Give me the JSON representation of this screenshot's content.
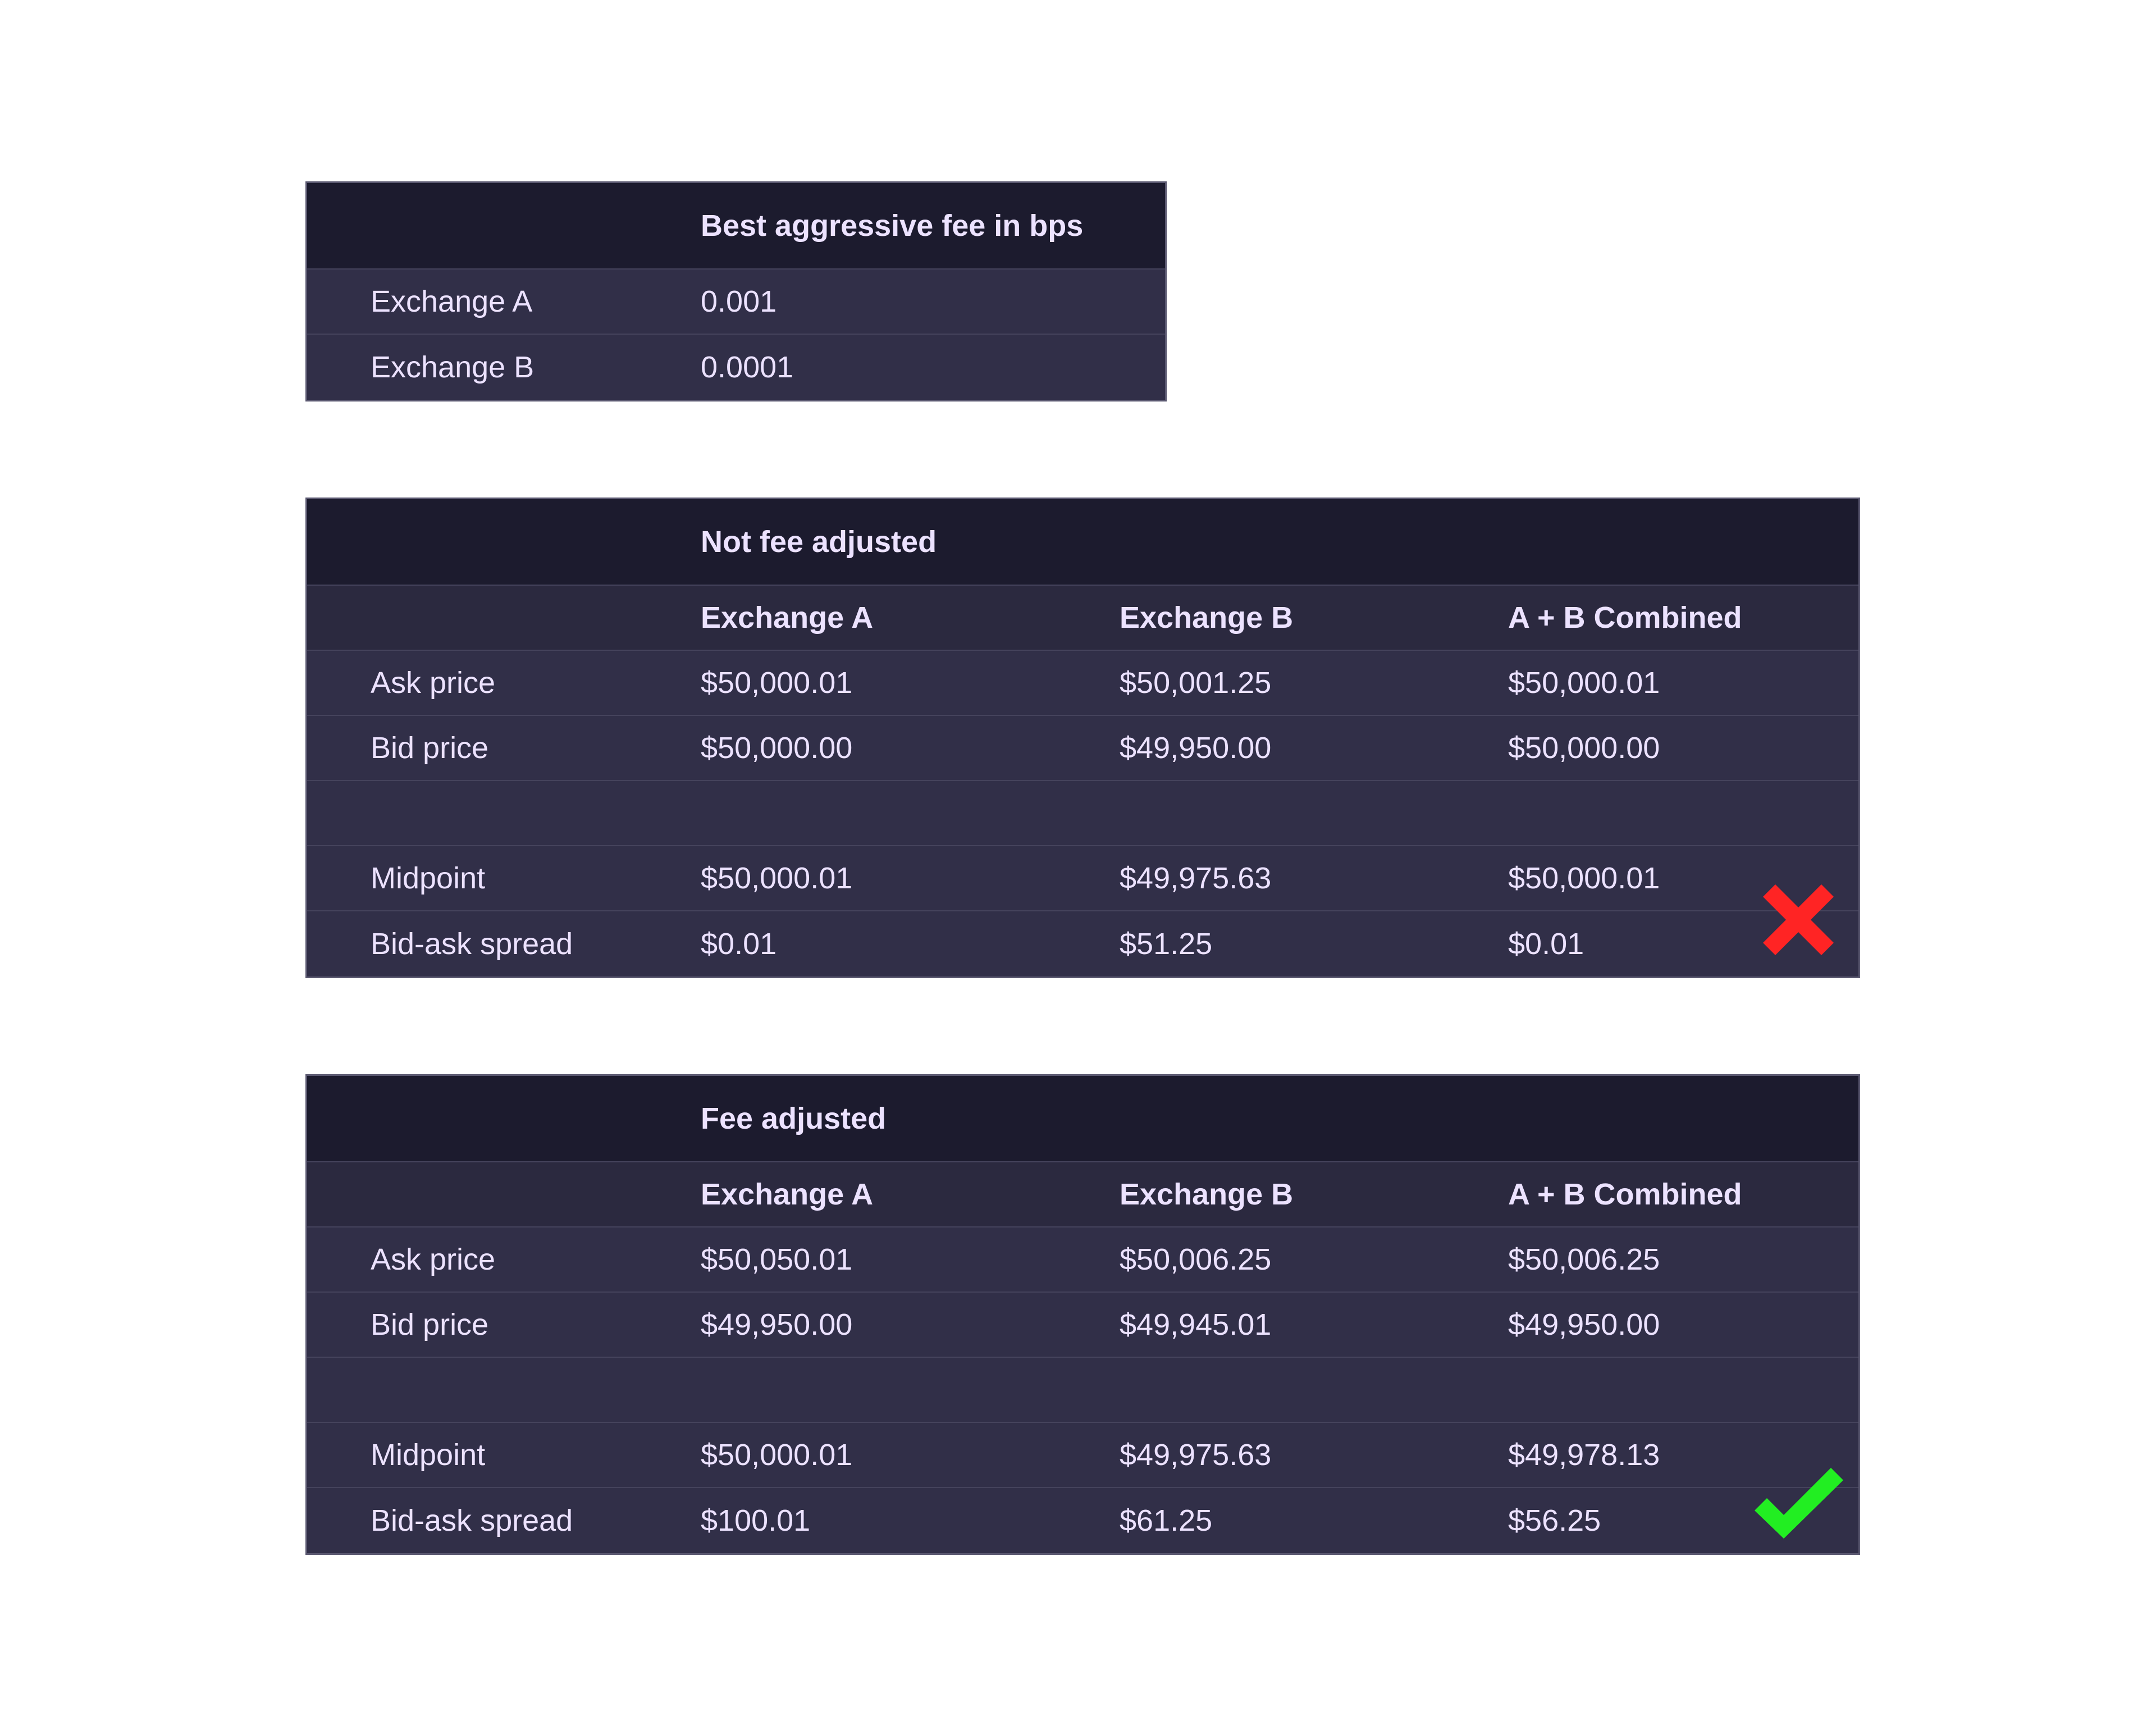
{
  "fee_table": {
    "header": "Best aggressive fee in bps",
    "rows": [
      {
        "label": "Exchange A",
        "value": "0.001"
      },
      {
        "label": "Exchange B",
        "value": "0.0001"
      }
    ]
  },
  "not_fee_adjusted": {
    "header": "Not fee adjusted",
    "columns": [
      "Exchange A",
      "Exchange B",
      "A + B Combined"
    ],
    "rows": [
      {
        "label": "Ask price",
        "values": [
          "$50,000.01",
          "$50,001.25",
          "$50,000.01"
        ]
      },
      {
        "label": "Bid price",
        "values": [
          "$50,000.00",
          "$49,950.00",
          "$50,000.00"
        ]
      },
      {
        "label": "",
        "values": [
          "",
          "",
          ""
        ]
      },
      {
        "label": "Midpoint",
        "values": [
          "$50,000.01",
          "$49,975.63",
          "$50,000.01"
        ]
      },
      {
        "label": "Bid-ask spread",
        "values": [
          "$0.01",
          "$51.25",
          "$0.01"
        ]
      }
    ],
    "status_icon": "cross-icon",
    "status_color": "#ff2424"
  },
  "fee_adjusted": {
    "header": "Fee adjusted",
    "columns": [
      "Exchange A",
      "Exchange B",
      "A + B Combined"
    ],
    "rows": [
      {
        "label": "Ask price",
        "values": [
          "$50,050.01",
          "$50,006.25",
          "$50,006.25"
        ]
      },
      {
        "label": "Bid price",
        "values": [
          "$49,950.00",
          "$49,945.01",
          "$49,950.00"
        ]
      },
      {
        "label": "",
        "values": [
          "",
          "",
          ""
        ]
      },
      {
        "label": "Midpoint",
        "values": [
          "$50,000.01",
          "$49,975.63",
          "$49,978.13"
        ]
      },
      {
        "label": "Bid-ask spread",
        "values": [
          "$100.01",
          "$61.25",
          "$56.25"
        ]
      }
    ],
    "status_icon": "check-icon",
    "status_color": "#22ee22"
  }
}
